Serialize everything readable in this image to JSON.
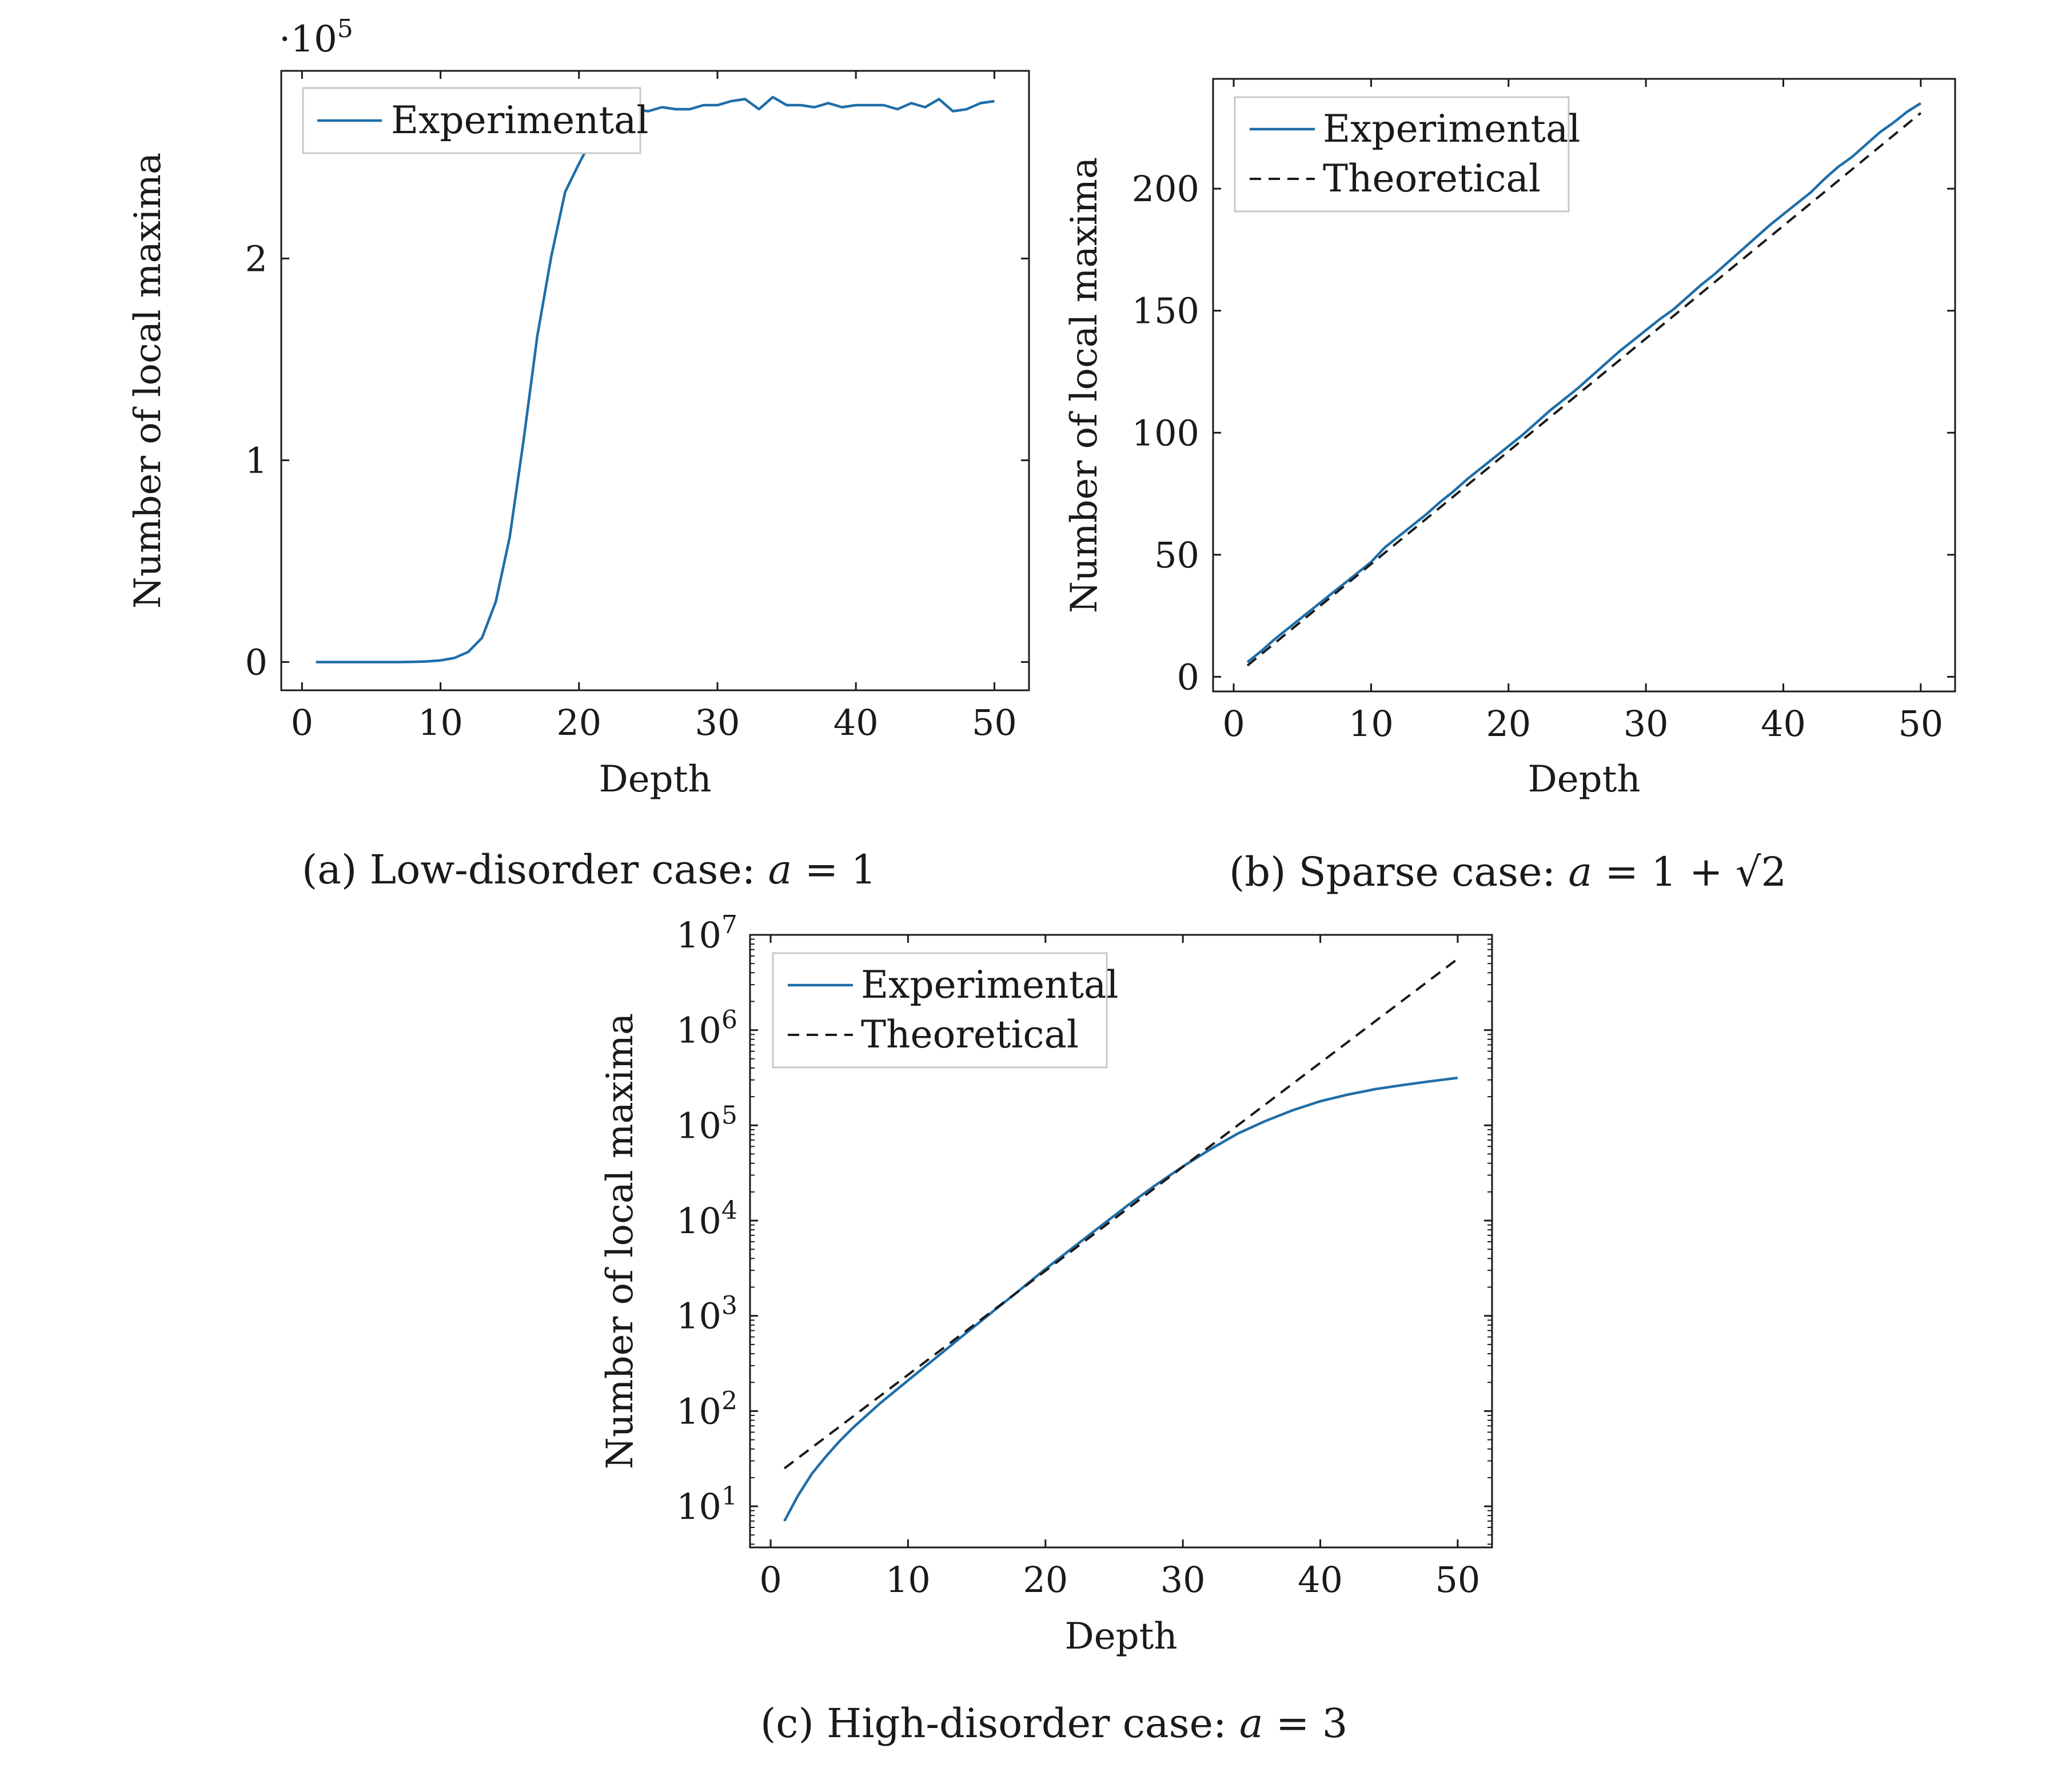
{
  "chart_data": [
    {
      "id": "a",
      "type": "line",
      "caption": "(a) Low-disorder case: a = 1",
      "xlabel": "Depth",
      "ylabel": "Number of local maxima",
      "y_multiplier_label": "·10^5",
      "xlim": [
        -1.5,
        52.5
      ],
      "ylim": [
        -0.14,
        2.93
      ],
      "xticks": [
        0,
        10,
        20,
        30,
        40,
        50
      ],
      "yticks": [
        0,
        1,
        2
      ],
      "legend_position": "top-left",
      "series": [
        {
          "name": "Experimental",
          "style": "solid",
          "color": "#1f6ea8",
          "x": [
            1,
            2,
            3,
            4,
            5,
            6,
            7,
            8,
            9,
            10,
            11,
            12,
            13,
            14,
            15,
            16,
            17,
            18,
            19,
            20,
            21,
            22,
            23,
            24,
            25,
            26,
            27,
            28,
            29,
            30,
            31,
            32,
            33,
            34,
            35,
            36,
            37,
            38,
            39,
            40,
            41,
            42,
            43,
            44,
            45,
            46,
            47,
            48,
            49,
            50
          ],
          "y": [
            0,
            0,
            0,
            0,
            0,
            0,
            0,
            0.001,
            0.003,
            0.008,
            0.02,
            0.05,
            0.12,
            0.3,
            0.62,
            1.1,
            1.62,
            2.01,
            2.33,
            2.47,
            2.6,
            2.68,
            2.72,
            2.74,
            2.73,
            2.75,
            2.74,
            2.74,
            2.76,
            2.76,
            2.78,
            2.79,
            2.74,
            2.8,
            2.76,
            2.76,
            2.75,
            2.77,
            2.75,
            2.76,
            2.76,
            2.76,
            2.74,
            2.77,
            2.75,
            2.79,
            2.73,
            2.74,
            2.77,
            2.78
          ]
        }
      ]
    },
    {
      "id": "b",
      "type": "line",
      "caption": "(b) Sparse case: a = 1 + √2",
      "xlabel": "Depth",
      "ylabel": "Number of local maxima",
      "xlim": [
        -1.5,
        52.5
      ],
      "ylim": [
        -6,
        245
      ],
      "xticks": [
        0,
        10,
        20,
        30,
        40,
        50
      ],
      "yticks": [
        0,
        50,
        100,
        150,
        200
      ],
      "legend_position": "top-left",
      "series": [
        {
          "name": "Experimental",
          "style": "solid",
          "color": "#1f6ea8",
          "x": [
            1,
            2,
            3,
            4,
            5,
            6,
            7,
            8,
            9,
            10,
            11,
            12,
            13,
            14,
            15,
            16,
            17,
            18,
            19,
            20,
            21,
            22,
            23,
            24,
            25,
            26,
            27,
            28,
            29,
            30,
            31,
            32,
            33,
            34,
            35,
            36,
            37,
            38,
            39,
            40,
            41,
            42,
            43,
            44,
            45,
            46,
            47,
            48,
            49,
            50
          ],
          "y": [
            6,
            10.5,
            15.5,
            20,
            24.5,
            29,
            33.5,
            38,
            42.5,
            47,
            53,
            57.5,
            62,
            66.5,
            71.5,
            76,
            81,
            85.5,
            90,
            94.5,
            99,
            104,
            109,
            113.5,
            118,
            123,
            128,
            133,
            137.5,
            142,
            146.5,
            150.5,
            155.5,
            160.5,
            165,
            170,
            175,
            180,
            185,
            189.5,
            194,
            198.5,
            204,
            209,
            213,
            218,
            223,
            227,
            231.5,
            235
          ]
        },
        {
          "name": "Theoretical",
          "style": "dashed",
          "color": "#1a1a1a",
          "x": [
            1,
            50
          ],
          "y": [
            4.6,
            231
          ]
        }
      ]
    },
    {
      "id": "c",
      "type": "line",
      "caption": "(c) High-disorder case: a = 3",
      "xlabel": "Depth",
      "ylabel": "Number of local maxima",
      "yscale": "log",
      "xlim": [
        -1.5,
        52.5
      ],
      "ylim": [
        3.7,
        10000000
      ],
      "xticks": [
        0,
        10,
        20,
        30,
        40,
        50
      ],
      "yticks": [
        "10^1",
        "10^2",
        "10^3",
        "10^4",
        "10^5",
        "10^6",
        "10^7"
      ],
      "legend_position": "top-left",
      "series": [
        {
          "name": "Experimental",
          "style": "solid",
          "color": "#1f6ea8",
          "x": [
            1,
            2,
            3,
            4,
            5,
            6,
            8,
            10,
            12,
            14,
            16,
            18,
            20,
            22,
            24,
            26,
            28,
            30,
            32,
            34,
            36,
            38,
            40,
            42,
            44,
            46,
            48,
            50
          ],
          "y": [
            7,
            13,
            22,
            33,
            48,
            67,
            122,
            210,
            360,
            620,
            1060,
            1800,
            3100,
            5200,
            8700,
            14500,
            23500,
            37000,
            56000,
            82000,
            111000,
            144000,
            179000,
            210000,
            240000,
            265000,
            290000,
            315000
          ]
        },
        {
          "name": "Theoretical",
          "style": "dashed",
          "color": "#1a1a1a",
          "x": [
            1,
            50
          ],
          "y": [
            25,
            5600000
          ]
        }
      ]
    }
  ]
}
